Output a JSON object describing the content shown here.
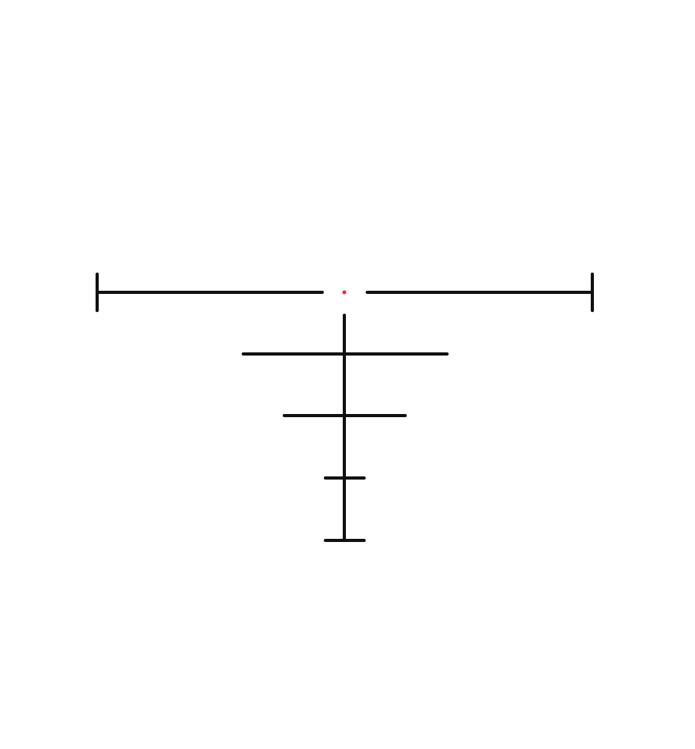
{
  "reticle": {
    "line_color": "#111111",
    "center_dot_color": "#e8303a",
    "background": "#ffffff",
    "parts": [
      "horizontal-bar-left",
      "horizontal-bar-right",
      "left-end-cap",
      "right-end-cap",
      "vertical-post",
      "holdover-bar-1",
      "holdover-bar-2",
      "holdover-bar-3",
      "bottom-bar"
    ]
  }
}
